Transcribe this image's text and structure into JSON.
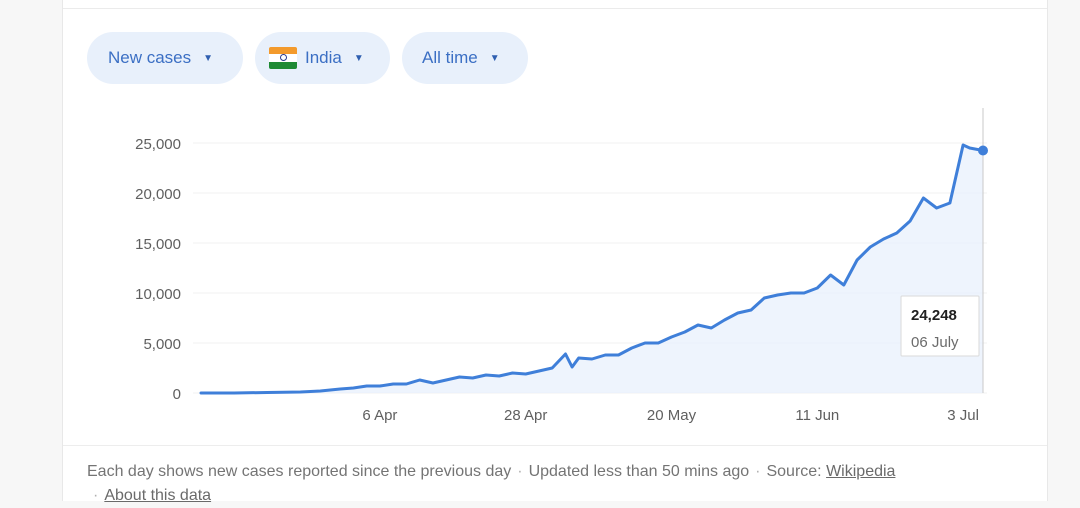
{
  "filters": {
    "metric": {
      "label": "New cases"
    },
    "country": {
      "label": "India",
      "flag_icon": "india-flag-icon"
    },
    "range": {
      "label": "All time"
    }
  },
  "colors": {
    "line": "#3f7fd9",
    "area": "#eaf1fc",
    "chip_bg": "#e8f0fb",
    "chip_text": "#3b6fc4"
  },
  "tooltip": {
    "value": "24,248",
    "date": "06 July"
  },
  "footer": {
    "description": "Each day shows new cases reported since the previous day",
    "updated": "Updated less than 50 mins ago",
    "source_label": "Source:",
    "source_link": "Wikipedia",
    "about_link": "About this data"
  },
  "chart_data": {
    "type": "area",
    "title": "",
    "xlabel": "",
    "ylabel": "",
    "ylim": [
      0,
      25000
    ],
    "y_ticks": [
      0,
      5000,
      10000,
      15000,
      20000,
      25000
    ],
    "y_tick_labels": [
      "0",
      "5,000",
      "10,000",
      "15,000",
      "20,000",
      "25,000"
    ],
    "x_tick_labels": [
      "6 Apr",
      "28 Apr",
      "20 May",
      "11 Jun",
      "3 Jul"
    ],
    "x_tick_dates": [
      "2020-04-06",
      "2020-04-28",
      "2020-05-20",
      "2020-06-11",
      "2020-07-03"
    ],
    "grid": true,
    "series": [
      {
        "x": [
          "2020-03-10",
          "2020-03-15",
          "2020-03-20",
          "2020-03-25",
          "2020-03-28",
          "2020-03-31",
          "2020-04-02",
          "2020-04-04",
          "2020-04-06",
          "2020-04-08",
          "2020-04-10",
          "2020-04-12",
          "2020-04-14",
          "2020-04-16",
          "2020-04-18",
          "2020-04-20",
          "2020-04-22",
          "2020-04-24",
          "2020-04-26",
          "2020-04-28",
          "2020-04-30",
          "2020-05-02",
          "2020-05-04",
          "2020-05-05",
          "2020-05-06",
          "2020-05-08",
          "2020-05-10",
          "2020-05-12",
          "2020-05-14",
          "2020-05-16",
          "2020-05-18",
          "2020-05-20",
          "2020-05-22",
          "2020-05-24",
          "2020-05-26",
          "2020-05-28",
          "2020-05-30",
          "2020-06-01",
          "2020-06-03",
          "2020-06-05",
          "2020-06-07",
          "2020-06-09",
          "2020-06-11",
          "2020-06-13",
          "2020-06-15",
          "2020-06-17",
          "2020-06-19",
          "2020-06-21",
          "2020-06-23",
          "2020-06-25",
          "2020-06-27",
          "2020-06-29",
          "2020-07-01",
          "2020-07-03",
          "2020-07-04",
          "2020-07-06"
        ],
        "values": [
          0,
          0,
          50,
          100,
          200,
          400,
          500,
          700,
          700,
          900,
          900,
          1300,
          1000,
          1300,
          1600,
          1500,
          1800,
          1700,
          2000,
          1900,
          2200,
          2500,
          3900,
          2600,
          3500,
          3400,
          3800,
          3800,
          4500,
          5000,
          5000,
          5600,
          6100,
          6800,
          6500,
          7300,
          8000,
          8300,
          9500,
          9800,
          10000,
          10000,
          10500,
          11800,
          10800,
          13300,
          14600,
          15400,
          16000,
          17200,
          19500,
          18500,
          19000,
          24800,
          24500,
          24248
        ]
      }
    ]
  }
}
